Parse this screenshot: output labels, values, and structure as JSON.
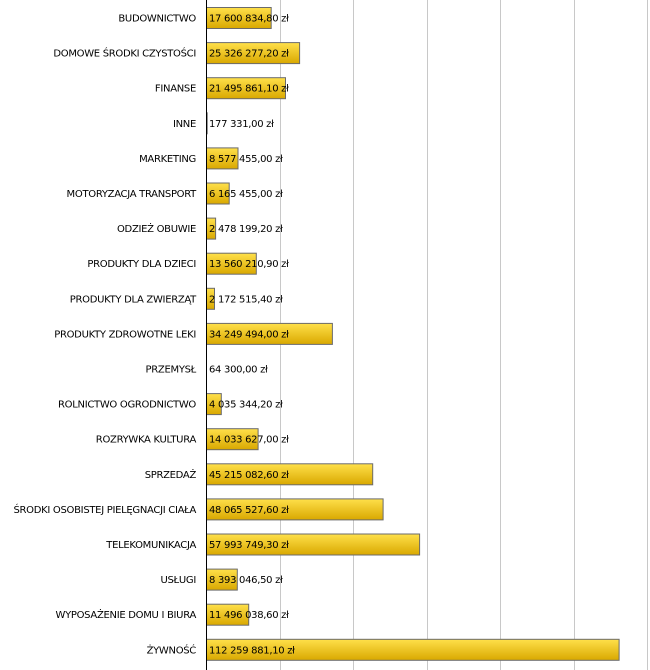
{
  "chart_data": {
    "type": "bar",
    "orientation": "horizontal",
    "title": "",
    "xlabel": "",
    "ylabel": "",
    "grid": true,
    "colors": {
      "bar_top": "#ffe04a",
      "bar_bottom": "#d9a800",
      "bar_stroke": "#6b6b6b",
      "grid": "#c8c8c8"
    },
    "xlim": [
      0,
      120000000
    ],
    "x_gridline_step": 20000000,
    "categories": [
      "BUDOWNICTWO",
      "DOMOWE ŚRODKI CZYSTOŚCI",
      "FINANSE",
      "INNE",
      "MARKETING",
      "MOTORYZACJA TRANSPORT",
      "ODZIEŻ OBUWIE",
      "PRODUKTY DLA DZIECI",
      "PRODUKTY DLA ZWIERZĄT",
      "PRODUKTY ZDROWOTNE LEKI",
      "PRZEMYSŁ",
      "ROLNICTWO OGRODNICTWO",
      "ROZRYWKA KULTURA",
      "SPRZEDAŻ",
      "ŚRODKI OSOBISTEJ PIELĘGNACJI CIAŁA",
      "TELEKOMUNIKACJA",
      "USŁUGI",
      "WYPOSAŻENIE DOMU I BIURA",
      "ŻYWNOŚĆ"
    ],
    "values": [
      17600834.8,
      25326277.2,
      21495861.1,
      177331.0,
      8577455.0,
      6165455.0,
      2478199.2,
      13560210.9,
      2172515.4,
      34249494.0,
      64300.0,
      4035344.2,
      14033627.0,
      45215082.6,
      48065527.6,
      57993749.3,
      8393046.5,
      11496038.6,
      112259881.1
    ],
    "value_labels": [
      "17 600 834,80 zł",
      "25 326 277,20 zł",
      "21 495 861,10 zł",
      "177 331,00 zł",
      "8 577 455,00 zł",
      "6 165 455,00 zł",
      "2 478 199,20 zł",
      "13 560 210,90 zł",
      "2 172 515,40 zł",
      "34 249 494,00 zł",
      "64 300,00 zł",
      "4 035 344,20 zł",
      "14 033 627,00 zł",
      "45 215 082,60 zł",
      "48 065 527,60 zł",
      "57 993 749,30 zł",
      "8 393 046,50 zł",
      "11 496 038,60 zł",
      "112 259 881,10 zł"
    ]
  }
}
